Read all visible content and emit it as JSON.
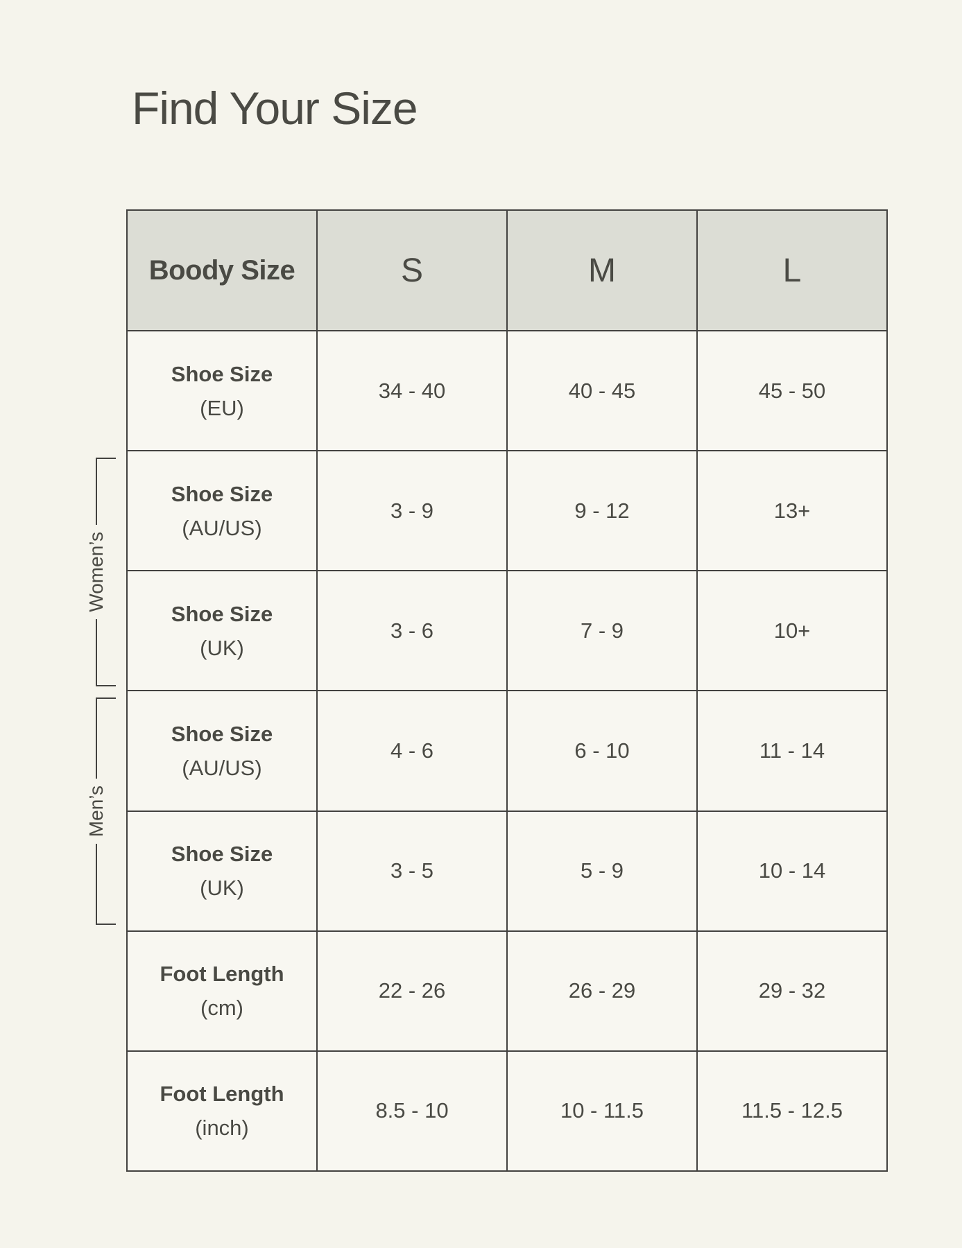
{
  "page": {
    "title": "Find Your Size"
  },
  "groups": {
    "womens": "Women’s",
    "mens": "Men’s"
  },
  "table": {
    "header": {
      "label": "Boody Size",
      "sizes": [
        "S",
        "M",
        "L"
      ]
    },
    "rows": [
      {
        "label": "Shoe Size",
        "unit": "(EU)",
        "group": "",
        "values": [
          "34 - 40",
          "40 - 45",
          "45 - 50"
        ]
      },
      {
        "label": "Shoe Size",
        "unit": "(AU/US)",
        "group": "womens",
        "values": [
          "3 - 9",
          "9 - 12",
          "13+"
        ]
      },
      {
        "label": "Shoe Size",
        "unit": "(UK)",
        "group": "womens",
        "values": [
          "3 - 6",
          "7 - 9",
          "10+"
        ]
      },
      {
        "label": "Shoe Size",
        "unit": "(AU/US)",
        "group": "mens",
        "values": [
          "4 - 6",
          "6 - 10",
          "11 - 14"
        ]
      },
      {
        "label": "Shoe Size",
        "unit": "(UK)",
        "group": "mens",
        "values": [
          "3 - 5",
          "5 - 9",
          "10 - 14"
        ]
      },
      {
        "label": "Foot Length",
        "unit": "(cm)",
        "group": "",
        "values": [
          "22 - 26",
          "26 - 29",
          "29 - 32"
        ]
      },
      {
        "label": "Foot Length",
        "unit": "(inch)",
        "group": "",
        "values": [
          "8.5 - 10",
          "10 - 11.5",
          "11.5 - 12.5"
        ]
      }
    ]
  },
  "colors": {
    "page_bg": "#F5F4EC",
    "cell_bg": "#F8F7F1",
    "header_bg": "#DCDDD5",
    "border": "#434240",
    "text": "#4A4A44"
  }
}
